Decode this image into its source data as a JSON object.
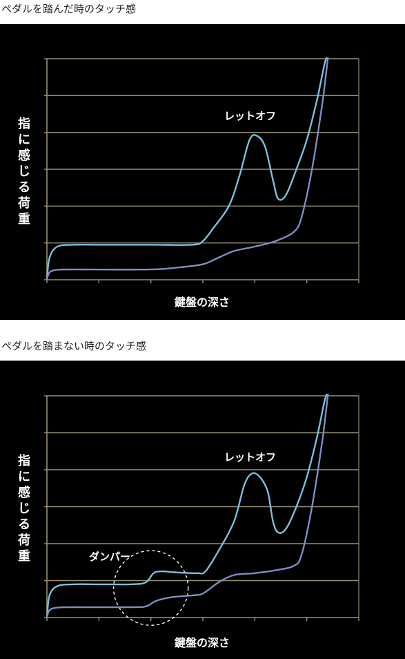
{
  "colors": {
    "background": "#000000",
    "grid": "#9a9073",
    "upper_curve": "#7cc0dc",
    "lower_curve": "#7d8ec2",
    "text": "#ffffff"
  },
  "charts": [
    {
      "caption": "ペダルを踏んだ時のタッチ感",
      "ylabel": "指に感じる荷重",
      "xlabel": "鍵盤の深さ",
      "annotation": "レットオフ"
    },
    {
      "caption": "ペダルを踏まない時のタッチ感",
      "ylabel": "指に感じる荷重",
      "xlabel": "鍵盤の深さ",
      "annotation": "レットオフ",
      "damper_label": "ダンパー"
    }
  ],
  "chart_data": [
    {
      "type": "line",
      "title": "ペダルを踏んだ時のタッチ感",
      "xlabel": "鍵盤の深さ",
      "ylabel": "指に感じる荷重",
      "xlim": [
        0,
        6
      ],
      "ylim": [
        0,
        6
      ],
      "grid": true,
      "annotations": [
        {
          "text": "レットオフ",
          "x": 4.2,
          "y": 4.6
        }
      ],
      "series": [
        {
          "color": "#7cc0dc",
          "x": [
            0,
            0.05,
            0.2,
            0.5,
            1.0,
            2.0,
            2.8,
            3.0,
            3.2,
            3.5,
            3.7,
            3.9,
            4.05,
            4.2,
            4.35,
            4.45,
            4.6,
            4.8,
            5.0,
            5.2,
            5.35,
            5.45
          ],
          "y": [
            0,
            0.6,
            0.9,
            0.95,
            0.95,
            0.95,
            0.95,
            1.05,
            1.4,
            2.0,
            2.8,
            3.8,
            3.9,
            3.6,
            2.7,
            2.2,
            2.3,
            3.0,
            3.8,
            4.9,
            5.9,
            6.2
          ]
        },
        {
          "color": "#7d8ec2",
          "x": [
            0,
            0.05,
            0.2,
            0.5,
            2.0,
            2.5,
            3.0,
            3.3,
            3.6,
            4.0,
            4.4,
            4.75,
            4.9,
            5.1,
            5.3,
            5.42
          ],
          "y": [
            0,
            0.2,
            0.27,
            0.28,
            0.28,
            0.33,
            0.42,
            0.6,
            0.78,
            0.9,
            1.05,
            1.3,
            1.7,
            3.0,
            4.8,
            6.2
          ]
        }
      ]
    },
    {
      "type": "line",
      "title": "ペダルを踏まない時のタッチ感",
      "xlabel": "鍵盤の深さ",
      "ylabel": "指に感じる荷重",
      "xlim": [
        0,
        6
      ],
      "ylim": [
        0,
        6
      ],
      "grid": true,
      "annotations": [
        {
          "text": "レットオフ",
          "x": 4.2,
          "y": 4.6
        },
        {
          "text": "ダンパー",
          "x": 1.1,
          "y": 1.6
        }
      ],
      "series": [
        {
          "color": "#7cc0dc",
          "x": [
            0,
            0.05,
            0.2,
            0.5,
            1.0,
            1.6,
            1.9,
            2.05,
            2.2,
            2.5,
            2.9,
            3.05,
            3.3,
            3.6,
            3.8,
            3.95,
            4.1,
            4.25,
            4.35,
            4.45,
            4.6,
            4.8,
            5.0,
            5.2,
            5.35,
            5.45
          ],
          "y": [
            0,
            0.6,
            0.85,
            0.9,
            0.9,
            0.9,
            0.95,
            1.2,
            1.25,
            1.22,
            1.2,
            1.25,
            1.8,
            2.6,
            3.6,
            3.9,
            3.8,
            3.4,
            2.6,
            2.3,
            2.4,
            3.0,
            3.8,
            4.9,
            5.9,
            6.2
          ]
        },
        {
          "color": "#7d8ec2",
          "x": [
            0,
            0.05,
            0.2,
            0.5,
            1.6,
            1.9,
            2.1,
            2.4,
            2.8,
            3.0,
            3.3,
            3.6,
            4.0,
            4.4,
            4.75,
            4.9,
            5.1,
            5.3,
            5.42
          ],
          "y": [
            0,
            0.2,
            0.27,
            0.28,
            0.28,
            0.3,
            0.45,
            0.55,
            0.6,
            0.65,
            0.95,
            1.15,
            1.2,
            1.28,
            1.4,
            1.7,
            3.0,
            4.8,
            6.2
          ]
        }
      ]
    }
  ]
}
